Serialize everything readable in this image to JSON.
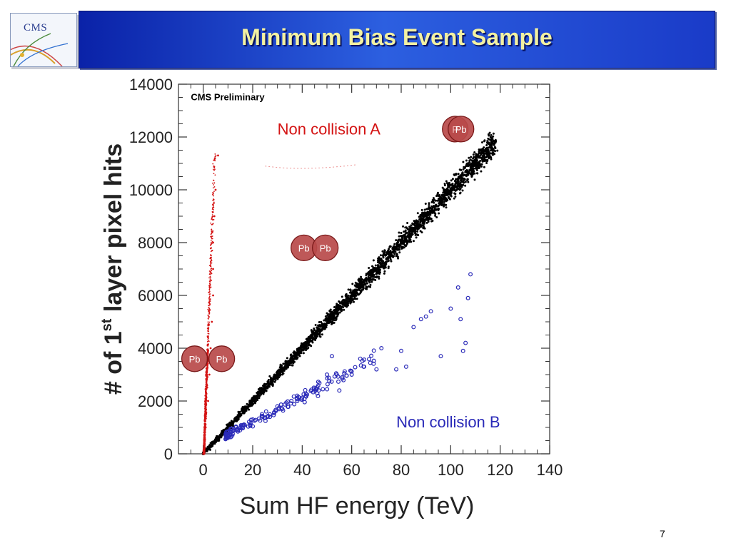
{
  "slide": {
    "title": "Minimum Bias Event Sample",
    "logo_text": "CMS",
    "page_number": "7"
  },
  "colors": {
    "title_text": "#f3f1a2",
    "title_bar_left": "#0a22a8",
    "title_bar_mid": "#2c5fe0",
    "collision_points": "#000000",
    "non_collision_a": "#d41414",
    "non_collision_b": "#2a2ab8",
    "ion_fill": "#b94a4a",
    "ion_stroke": "#7a1a1a"
  },
  "icons": {
    "logo": "cms-experiment-logo",
    "ion": "lead-ion-circle"
  },
  "chart_data": {
    "type": "scatter",
    "title": "",
    "watermark": "CMS Preliminary",
    "xlabel": "Sum HF energy (TeV)",
    "ylabel_prefix": "# of 1",
    "ylabel_sup": "st",
    "ylabel_suffix": " layer pixel hits",
    "xlim": [
      -10,
      140
    ],
    "ylim": [
      0,
      14000
    ],
    "xticks": [
      0,
      20,
      40,
      60,
      80,
      100,
      120,
      140
    ],
    "yticks": [
      0,
      2000,
      4000,
      6000,
      8000,
      10000,
      12000,
      14000
    ],
    "x_tick_labels": [
      "0",
      "20",
      "40",
      "60",
      "80",
      "100",
      "120",
      "140"
    ],
    "y_tick_labels": [
      "0",
      "2000",
      "4000",
      "6000",
      "8000",
      "10000",
      "12000",
      "14000"
    ],
    "grid": false,
    "series": [
      {
        "label": "",
        "color": "#000000",
        "shape": "dense band",
        "points": [
          [
            0,
            0
          ],
          [
            5,
            500
          ],
          [
            10,
            1100
          ],
          [
            20,
            2100
          ],
          [
            30,
            3100
          ],
          [
            40,
            4100
          ],
          [
            50,
            5100
          ],
          [
            60,
            6100
          ],
          [
            70,
            7000
          ],
          [
            80,
            8000
          ],
          [
            90,
            9000
          ],
          [
            100,
            10000
          ],
          [
            110,
            11000
          ],
          [
            118,
            11800
          ]
        ]
      },
      {
        "label": "Non collision A",
        "color": "#d41414",
        "shape": "near-vertical band at x≈0–5",
        "points": [
          [
            0,
            0
          ],
          [
            1,
            1000
          ],
          [
            2,
            2000
          ],
          [
            2.5,
            3000
          ],
          [
            3,
            4000
          ],
          [
            3.5,
            5000
          ],
          [
            4,
            6000
          ],
          [
            4,
            7000
          ],
          [
            4,
            8000
          ],
          [
            4.5,
            9000
          ],
          [
            5,
            10000
          ],
          [
            6,
            11300
          ]
        ]
      },
      {
        "label": "Non collision B",
        "color": "#2a2ab8",
        "shape": "scattered open circles below the main band",
        "points": [
          [
            10,
            700
          ],
          [
            14,
            900
          ],
          [
            20,
            1300
          ],
          [
            30,
            1800
          ],
          [
            38,
            2000
          ],
          [
            45,
            2400
          ],
          [
            50,
            3000
          ],
          [
            52,
            3700
          ],
          [
            55,
            2400
          ],
          [
            60,
            3000
          ],
          [
            65,
            3300
          ],
          [
            70,
            3200
          ],
          [
            72,
            4000
          ],
          [
            78,
            3200
          ],
          [
            80,
            3900
          ],
          [
            82,
            3300
          ],
          [
            85,
            4800
          ],
          [
            88,
            5100
          ],
          [
            90,
            5200
          ],
          [
            92,
            5400
          ],
          [
            96,
            3700
          ],
          [
            100,
            5500
          ],
          [
            103,
            6300
          ],
          [
            104,
            5100
          ],
          [
            105,
            3900
          ],
          [
            106,
            4200
          ],
          [
            107,
            5900
          ],
          [
            108,
            6800
          ]
        ]
      }
    ],
    "annotations": [
      {
        "text": "Non collision A",
        "color": "#d41414",
        "at": [
          30,
          12100
        ]
      },
      {
        "text": "Non collision B",
        "color": "#2a2ab8",
        "at": [
          78,
          1000
        ]
      },
      {
        "text": "CMS Preliminary",
        "color": "#000000",
        "at": [
          -5,
          13500
        ]
      }
    ],
    "ion_pairs": [
      {
        "left": "Pb",
        "right": "Pb",
        "at": [
          45,
          7800
        ],
        "overlap": "partial"
      },
      {
        "left": "Pb",
        "right": "Pb",
        "at": [
          2,
          3600
        ],
        "overlap": "none"
      },
      {
        "left": "P",
        "right": "Pb",
        "at": [
          103,
          12300
        ],
        "overlap": "full"
      }
    ]
  }
}
